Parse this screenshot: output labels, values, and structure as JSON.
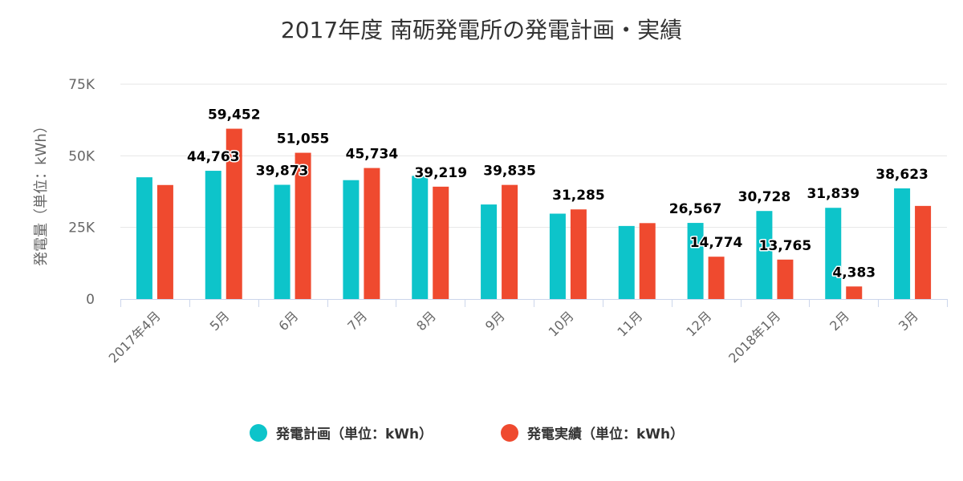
{
  "chart_data": {
    "type": "bar",
    "title": "2017年度 南砺発電所の発電計画・実績",
    "ylabel": "発電量（単位：kWh）",
    "ylim": [
      0,
      75000
    ],
    "yticks": [
      {
        "value": 0,
        "label": "0"
      },
      {
        "value": 25000,
        "label": "25K"
      },
      {
        "value": 50000,
        "label": "50K"
      },
      {
        "value": 75000,
        "label": "75K"
      }
    ],
    "categories": [
      "2017年4月",
      "5月",
      "6月",
      "7月",
      "8月",
      "9月",
      "10月",
      "11月",
      "12月",
      "2018年1月",
      "2月",
      "3月"
    ],
    "series": [
      {
        "name": "発電計画（単位：kWh）",
        "color": "#0dc4ca",
        "values": [
          42500,
          44763,
          39873,
          41500,
          43000,
          33000,
          29800,
          25500,
          26567,
          30728,
          31839,
          38623
        ],
        "labels": [
          "",
          "44,763",
          "39,873",
          "",
          "",
          "",
          "",
          "",
          "26,567",
          "30,728",
          "31,839",
          "38,623"
        ]
      },
      {
        "name": "発電実績（単位：kWh）",
        "color": "#ef4a2f",
        "values": [
          39800,
          59452,
          51055,
          45734,
          39219,
          39835,
          31285,
          26500,
          14774,
          13765,
          4383,
          32500
        ],
        "labels": [
          "",
          "59,452",
          "51,055",
          "45,734",
          "39,219",
          "39,835",
          "31,285",
          "",
          "14,774",
          "13,765",
          "4,383",
          ""
        ]
      }
    ],
    "grid": true,
    "legend": "bottom-center"
  }
}
